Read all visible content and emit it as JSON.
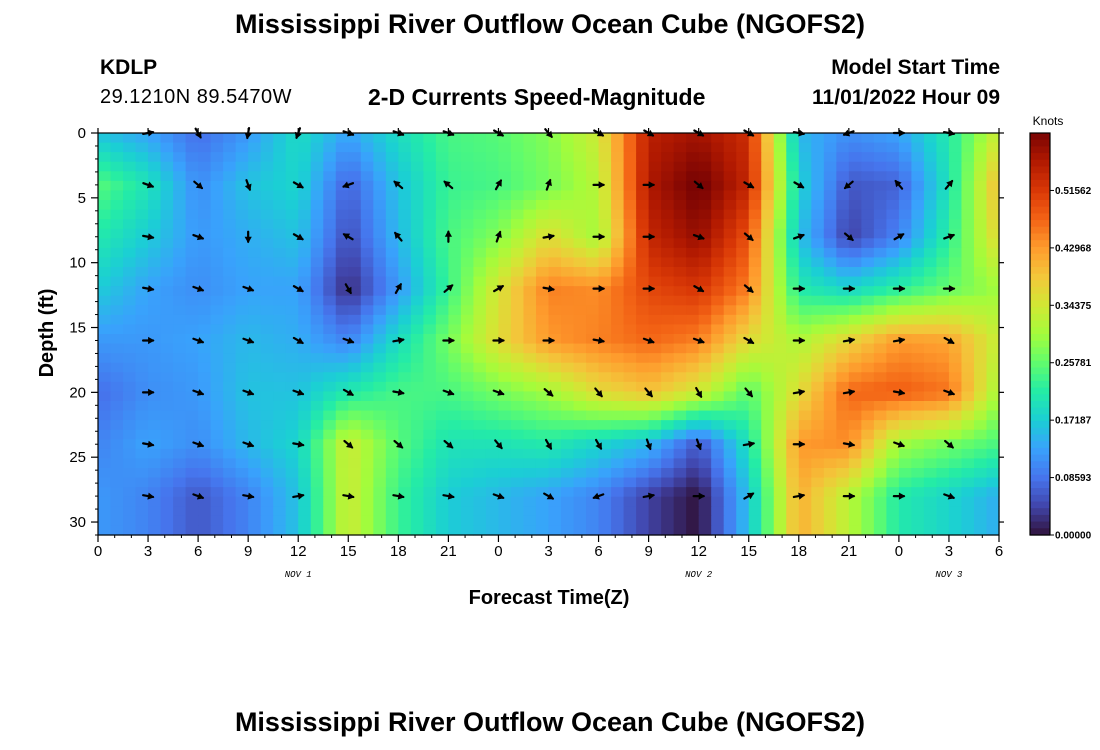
{
  "header": {
    "title": "Mississippi River Outflow Ocean Cube (NGOFS2)",
    "station_id": "KDLP",
    "station_coords": "29.1210N  89.5470W",
    "model_start_label": "Model Start Time",
    "model_start_time": "11/01/2022 Hour 09"
  },
  "footer": {
    "title": "Mississippi River Outflow Ocean Cube (NGOFS2)"
  },
  "chart_data": {
    "type": "heatmap",
    "title": "2-D Currents Speed-Magnitude",
    "xlabel": "Forecast Time(Z)",
    "ylabel": "Depth (ft)",
    "x_range_hours": [
      0,
      54
    ],
    "y_range": [
      0,
      31
    ],
    "y_inverted": true,
    "x_tick_labels": [
      "0",
      "3",
      "6",
      "9",
      "12",
      "15",
      "18",
      "21",
      "0",
      "3",
      "6",
      "9",
      "12",
      "15",
      "18",
      "21",
      "0",
      "3",
      "6"
    ],
    "y_ticks": [
      0,
      5,
      10,
      15,
      20,
      25,
      30
    ],
    "date_labels": [
      {
        "text": "NOV 1",
        "hour": 12
      },
      {
        "text": "NOV 2",
        "hour": 36
      },
      {
        "text": "NOV 3",
        "hour": 51
      }
    ],
    "colorbar": {
      "unit_label": "Knots",
      "tick_labels": [
        "0.00000",
        "0.08593",
        "0.17187",
        "0.25781",
        "0.34375",
        "0.42968",
        "0.51562"
      ],
      "tick_values": [
        0,
        0.08593,
        0.17187,
        0.25781,
        0.34375,
        0.42968,
        0.51562
      ],
      "range": [
        0,
        0.6016
      ],
      "colormap": [
        "#30123b",
        "#4145ab",
        "#4675ed",
        "#39a2fc",
        "#1bcfd4",
        "#24eca6",
        "#61fc6c",
        "#a4fc3b",
        "#d1e834",
        "#f3c63a",
        "#fe9b2d",
        "#f36315",
        "#d93806",
        "#b11901",
        "#7a0403"
      ]
    },
    "speed_field": {
      "depths": [
        0,
        4,
        8,
        12,
        16,
        20,
        24,
        28
      ],
      "hours": [
        0,
        3,
        6,
        9,
        12,
        15,
        18,
        21,
        24,
        27,
        30,
        33,
        36,
        39,
        42,
        45,
        48,
        51,
        54
      ],
      "values": [
        [
          0.16,
          0.13,
          0.08,
          0.12,
          0.19,
          0.13,
          0.19,
          0.24,
          0.25,
          0.28,
          0.34,
          0.55,
          0.57,
          0.53,
          0.15,
          0.11,
          0.13,
          0.21,
          0.34
        ],
        [
          0.25,
          0.2,
          0.11,
          0.16,
          0.18,
          0.07,
          0.16,
          0.23,
          0.24,
          0.27,
          0.32,
          0.56,
          0.61,
          0.54,
          0.18,
          0.06,
          0.07,
          0.2,
          0.4
        ],
        [
          0.21,
          0.17,
          0.12,
          0.14,
          0.16,
          0.05,
          0.15,
          0.24,
          0.28,
          0.36,
          0.3,
          0.54,
          0.58,
          0.49,
          0.16,
          0.04,
          0.1,
          0.22,
          0.37
        ],
        [
          0.17,
          0.13,
          0.11,
          0.13,
          0.13,
          0.02,
          0.12,
          0.23,
          0.35,
          0.45,
          0.44,
          0.5,
          0.52,
          0.45,
          0.21,
          0.18,
          0.22,
          0.26,
          0.3
        ],
        [
          0.12,
          0.12,
          0.13,
          0.15,
          0.14,
          0.1,
          0.19,
          0.27,
          0.36,
          0.43,
          0.45,
          0.47,
          0.45,
          0.36,
          0.31,
          0.37,
          0.43,
          0.42,
          0.33
        ],
        [
          0.08,
          0.11,
          0.12,
          0.16,
          0.16,
          0.21,
          0.24,
          0.24,
          0.27,
          0.3,
          0.36,
          0.39,
          0.34,
          0.25,
          0.36,
          0.47,
          0.48,
          0.46,
          0.3
        ],
        [
          0.1,
          0.13,
          0.11,
          0.15,
          0.18,
          0.34,
          0.25,
          0.2,
          0.2,
          0.21,
          0.18,
          0.15,
          0.06,
          0.2,
          0.43,
          0.44,
          0.3,
          0.27,
          0.24
        ],
        [
          0.12,
          0.1,
          0.06,
          0.1,
          0.16,
          0.34,
          0.23,
          0.17,
          0.15,
          0.13,
          0.1,
          0.04,
          0.0,
          0.16,
          0.41,
          0.32,
          0.21,
          0.18,
          0.14
        ]
      ]
    },
    "vector_field": {
      "depths": [
        0,
        4,
        8,
        12,
        16,
        20,
        24,
        28
      ],
      "hours": [
        3,
        6,
        9,
        12,
        15,
        18,
        21,
        24,
        27,
        30,
        33,
        36,
        39,
        42,
        45,
        48,
        51
      ],
      "directions_deg": [
        [
          80,
          150,
          190,
          200,
          110,
          110,
          110,
          120,
          140,
          120,
          120,
          120,
          120,
          100,
          250,
          90,
          100
        ],
        [
          110,
          130,
          160,
          120,
          250,
          310,
          310,
          30,
          20,
          90,
          90,
          130,
          120,
          120,
          230,
          320,
          40
        ],
        [
          100,
          110,
          180,
          120,
          300,
          320,
          0,
          20,
          80,
          90,
          90,
          110,
          130,
          70,
          130,
          60,
          70
        ],
        [
          100,
          110,
          110,
          120,
          150,
          30,
          50,
          60,
          100,
          90,
          90,
          120,
          130,
          90,
          90,
          90,
          90
        ],
        [
          90,
          110,
          110,
          120,
          110,
          80,
          90,
          90,
          90,
          100,
          110,
          110,
          120,
          90,
          80,
          80,
          120
        ],
        [
          90,
          110,
          110,
          110,
          120,
          100,
          110,
          110,
          130,
          140,
          140,
          150,
          140,
          80,
          80,
          100,
          110
        ],
        [
          100,
          110,
          110,
          100,
          130,
          130,
          130,
          140,
          150,
          150,
          160,
          160,
          80,
          90,
          100,
          110,
          130
        ],
        [
          100,
          110,
          100,
          80,
          100,
          100,
          100,
          110,
          120,
          250,
          80,
          90,
          60,
          80,
          90,
          90,
          110
        ]
      ]
    }
  }
}
